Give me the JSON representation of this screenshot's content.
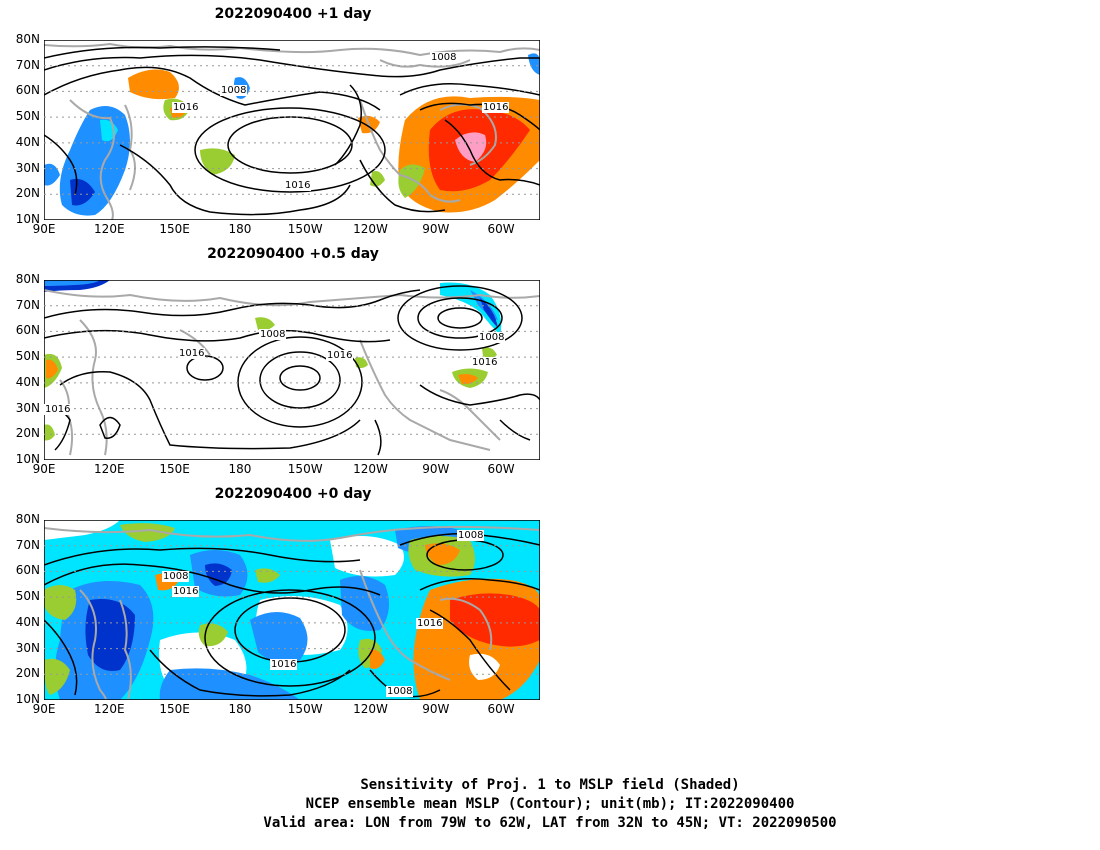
{
  "panels": [
    {
      "id": "p1",
      "title": "2022090400 +1 day"
    },
    {
      "id": "p2",
      "title": "2022090400 +0.5 day"
    },
    {
      "id": "p3",
      "title": "2022090400 +0 day"
    }
  ],
  "lat_labels": [
    "80N",
    "70N",
    "60N",
    "50N",
    "40N",
    "30N",
    "20N",
    "10N"
  ],
  "lon_labels": [
    "90E",
    "120E",
    "150E",
    "180",
    "150W",
    "120W",
    "90W",
    "60W"
  ],
  "contour_labels": {
    "p1": [
      "1008",
      "1008",
      "1016",
      "1016",
      "1016"
    ],
    "p2": [
      "1008",
      "1016",
      "1016",
      "1008",
      "1016",
      "1016"
    ],
    "p3": [
      "1008",
      "1016",
      "1008",
      "1016",
      "1016",
      "1008"
    ]
  },
  "caption": {
    "line1": "Sensitivity of Proj. 1 to MSLP field (Shaded)",
    "line2": "NCEP ensemble mean MSLP (Contour); unit(mb); IT:2022090400",
    "line3": "Valid area: LON from 79W to 62W, LAT from 32N to 45N; VT: 2022090500"
  },
  "colors": {
    "positive_weak": "#9acd32",
    "positive_mid": "#ff8c00",
    "positive_strong": "#ff2a00",
    "positive_max": "#ff9ec4",
    "negative_weak": "#00e5ff",
    "negative_mid": "#1e90ff",
    "negative_strong": "#0033cc",
    "contour": "#000000",
    "coastline": "#a9a9a9"
  }
}
